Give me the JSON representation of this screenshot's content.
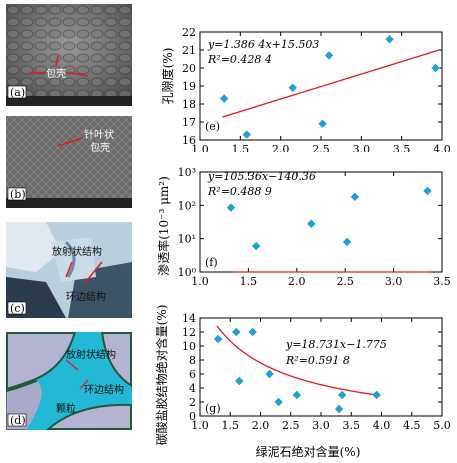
{
  "colors": {
    "marker": "#1e9fd8",
    "fit": "#e31a1c",
    "arrow": "#e31a1c",
    "mineral_cyan": "#22b8d6",
    "mineral_dark": "#1f5a3a"
  },
  "images": [
    {
      "tag": "(a)",
      "labels": [
        "包壳"
      ],
      "icon": "sem-micrograph"
    },
    {
      "tag": "(b)",
      "labels": [
        "针叶状",
        "包壳"
      ],
      "icon": "sem-micrograph"
    },
    {
      "tag": "(c)",
      "labels": [
        "放射状结构",
        "环边结构"
      ],
      "icon": "thin-section-micrograph"
    },
    {
      "tag": "(d)",
      "labels": [
        "放射状结构",
        "环边结构",
        "颗粒"
      ],
      "icon": "schematic"
    }
  ],
  "chart_data": [
    {
      "type": "scatter",
      "panel": "(e)",
      "ylabel": "孔隙度(%)",
      "xlabel": "",
      "xlim": [
        1.0,
        4.0
      ],
      "ylim": [
        16,
        22
      ],
      "xticks": [
        "1.0",
        "1.5",
        "2.0",
        "2.5",
        "3.0",
        "3.5",
        "4.0"
      ],
      "yticks": [
        "16",
        "17",
        "18",
        "19",
        "20",
        "21",
        "22"
      ],
      "points": {
        "x": [
          1.3,
          1.58,
          2.15,
          2.52,
          2.6,
          3.35,
          3.92
        ],
        "y": [
          18.3,
          16.3,
          18.9,
          16.9,
          20.7,
          21.6,
          20.0
        ]
      },
      "fit": {
        "kind": "linear",
        "a": 1.3864,
        "b": 15.503,
        "range": [
          1.28,
          3.95
        ]
      },
      "equation": "y=1.386 4x+15.503",
      "r2": "R²=0.428 4"
    },
    {
      "type": "scatter",
      "panel": "(f)",
      "ylabel": "渗透率(10⁻³ μm²)",
      "xlabel": "",
      "xlim": [
        1.0,
        3.5
      ],
      "ylim": [
        1,
        1000
      ],
      "yscale": "log",
      "xticks": [
        "1.0",
        "1.5",
        "2.0",
        "2.5",
        "3.0",
        "3.5"
      ],
      "yticks": [
        "10⁰",
        "10¹",
        "10²",
        "10³"
      ],
      "points": {
        "x": [
          1.32,
          1.58,
          2.15,
          2.52,
          2.6,
          3.35
        ],
        "y": [
          85,
          6,
          28,
          8,
          180,
          270
        ]
      },
      "fit": {
        "kind": "log",
        "a": 105.36,
        "b": -140.36,
        "range": [
          1.345,
          3.38
        ]
      },
      "equation": "y=105.36x−140.36",
      "r2": "R²=0.488 9"
    },
    {
      "type": "scatter",
      "panel": "(g)",
      "ylabel": "碳酸盐胶结物绝对含量(%)",
      "xlabel": "绿泥石绝对含量(%)",
      "xlim": [
        1.0,
        5.0
      ],
      "ylim": [
        0,
        14
      ],
      "xticks": [
        "1.0",
        "1.5",
        "2.0",
        "2.5",
        "3.0",
        "3.5",
        "4.0",
        "4.5",
        "5.0"
      ],
      "yticks": [
        "0",
        "2",
        "4",
        "6",
        "8",
        "10",
        "12",
        "14"
      ],
      "points": {
        "x": [
          1.3,
          1.6,
          1.65,
          1.87,
          2.15,
          2.3,
          2.6,
          3.3,
          3.35,
          3.92
        ],
        "y": [
          11,
          12,
          5,
          12,
          6,
          2,
          3,
          1,
          3,
          3
        ]
      },
      "fit": {
        "kind": "recip",
        "a": 18.731,
        "b": -1.775,
        "range": [
          1.28,
          3.95
        ]
      },
      "equation": "y=18.731x−1.775",
      "r2": "R²=0.591 8"
    }
  ]
}
